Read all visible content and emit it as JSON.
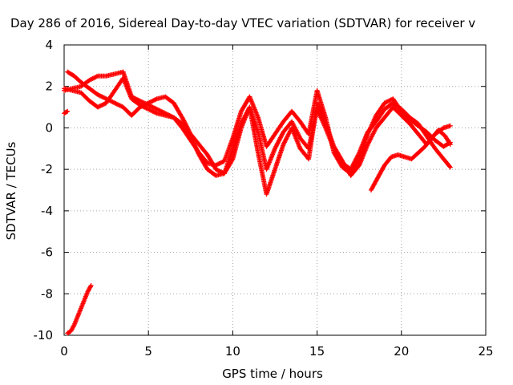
{
  "chart_data": {
    "type": "scatter",
    "title": "Day 286 of 2016, Sidereal Day-to-day VTEC variation (SDTVAR) for receiver v",
    "xlabel": "GPS time / hours",
    "ylabel": "SDTVAR / TECUs",
    "xlim": [
      0,
      25
    ],
    "ylim": [
      -10,
      4
    ],
    "x_ticks": [
      0,
      5,
      10,
      15,
      20,
      25
    ],
    "y_ticks": [
      -10,
      -8,
      -6,
      -4,
      -2,
      0,
      2,
      4
    ],
    "grid": true,
    "legend": "none",
    "marker": "+",
    "series_color": "#ff0000",
    "series": [
      {
        "name": "track-1",
        "x": [
          0,
          0.5,
          1,
          1.5,
          2,
          2.5,
          3,
          3.5,
          4,
          4.5,
          5,
          5.5,
          6,
          6.5,
          7,
          7.5,
          8,
          8.5,
          9,
          9.5,
          10,
          10.5,
          11,
          11.5,
          12,
          12.5,
          13,
          13.5,
          14,
          14.5,
          15,
          15.5,
          16,
          16.5,
          17,
          17.5,
          18,
          18.5,
          19,
          19.5,
          20,
          20.5,
          21,
          21.5,
          22,
          22.5,
          22.9
        ],
        "y": [
          1.8,
          1.9,
          2.0,
          2.3,
          2.5,
          2.5,
          2.6,
          2.7,
          1.5,
          1.3,
          1.1,
          0.9,
          0.7,
          0.5,
          0.0,
          -0.6,
          -1.2,
          -1.7,
          -1.8,
          -1.6,
          -0.5,
          0.8,
          1.5,
          0.5,
          -0.9,
          -0.3,
          0.3,
          0.8,
          0.3,
          -0.3,
          1.8,
          0.5,
          -1.2,
          -1.9,
          -2.2,
          -1.5,
          -0.3,
          0.6,
          1.2,
          1.4,
          0.8,
          0.4,
          0.1,
          -0.2,
          -0.6,
          -0.9,
          -0.7
        ]
      },
      {
        "name": "track-2",
        "x": [
          0.2,
          0.6,
          1,
          1.5,
          2,
          2.5,
          3,
          3.5,
          4,
          4.5,
          5,
          5.5,
          6,
          6.5,
          7,
          7.5,
          8,
          8.5,
          9,
          9.5,
          10,
          10.5,
          11,
          11.5,
          12,
          12.5,
          13,
          13.5,
          14,
          14.5,
          15,
          15.5,
          16,
          16.5,
          17,
          17.5,
          18,
          18.5,
          19,
          19.5,
          20,
          20.5,
          21,
          21.5,
          22,
          22.5,
          22.9
        ],
        "y": [
          2.7,
          2.5,
          2.2,
          1.9,
          1.6,
          1.4,
          1.2,
          1.0,
          0.6,
          1.0,
          1.2,
          1.4,
          1.5,
          1.2,
          0.5,
          -0.3,
          -0.8,
          -1.3,
          -2.0,
          -2.2,
          -1.0,
          0.2,
          1.0,
          -0.2,
          -2.0,
          -1.0,
          -0.2,
          0.3,
          -0.5,
          -1.0,
          0.9,
          0.0,
          -1.0,
          -1.7,
          -2.0,
          -1.2,
          -0.2,
          0.3,
          0.9,
          1.2,
          0.9,
          0.5,
          0.2,
          -0.4,
          -1.0,
          -1.5,
          -1.9
        ]
      },
      {
        "name": "track-3",
        "x": [
          0,
          0.5,
          1,
          1.5,
          2,
          2.5,
          3,
          3.5,
          4,
          4.5,
          5,
          5.5,
          6,
          6.5,
          7,
          7.5,
          8,
          8.5,
          9,
          9.5,
          10,
          10.5,
          11,
          11.5,
          12,
          12.5,
          13,
          13.5,
          14,
          14.5,
          15,
          15.5,
          16,
          16.5,
          17,
          17.5,
          18,
          18.5,
          19,
          19.5,
          20,
          20.5,
          21,
          21.5,
          22,
          22.5,
          22.9
        ],
        "y": [
          1.9,
          1.8,
          1.7,
          1.3,
          1.0,
          1.2,
          1.8,
          2.4,
          1.4,
          1.1,
          0.9,
          0.7,
          0.6,
          0.5,
          0.2,
          -0.4,
          -1.3,
          -2.0,
          -2.3,
          -2.2,
          -1.5,
          0.0,
          1.0,
          -1.2,
          -3.2,
          -2.0,
          -0.8,
          0.0,
          -1.0,
          -1.5,
          1.2,
          0.2,
          -0.9,
          -1.6,
          -2.3,
          -1.8,
          -0.8,
          0.0,
          0.5,
          1.0,
          0.6,
          0.2,
          -0.3,
          -0.8,
          -0.3,
          0.0,
          0.1
        ]
      },
      {
        "name": "track-4",
        "x": [
          18.2,
          18.6,
          19,
          19.4,
          19.8,
          20.2,
          20.6,
          21,
          21.4,
          21.8,
          22.2,
          22.6,
          22.9
        ],
        "y": [
          -3.0,
          -2.4,
          -1.8,
          -1.4,
          -1.3,
          -1.4,
          -1.5,
          -1.2,
          -0.9,
          -0.5,
          -0.1,
          -0.4,
          -0.8
        ]
      },
      {
        "name": "track-5",
        "x": [
          0,
          0.2
        ],
        "y": [
          0.7,
          0.8
        ]
      },
      {
        "name": "track-6",
        "x": [
          0.2,
          0.4,
          0.6,
          0.8,
          1,
          1.2,
          1.4,
          1.6
        ],
        "y": [
          -9.9,
          -9.8,
          -9.5,
          -9.1,
          -8.7,
          -8.3,
          -7.9,
          -7.6
        ]
      }
    ]
  }
}
